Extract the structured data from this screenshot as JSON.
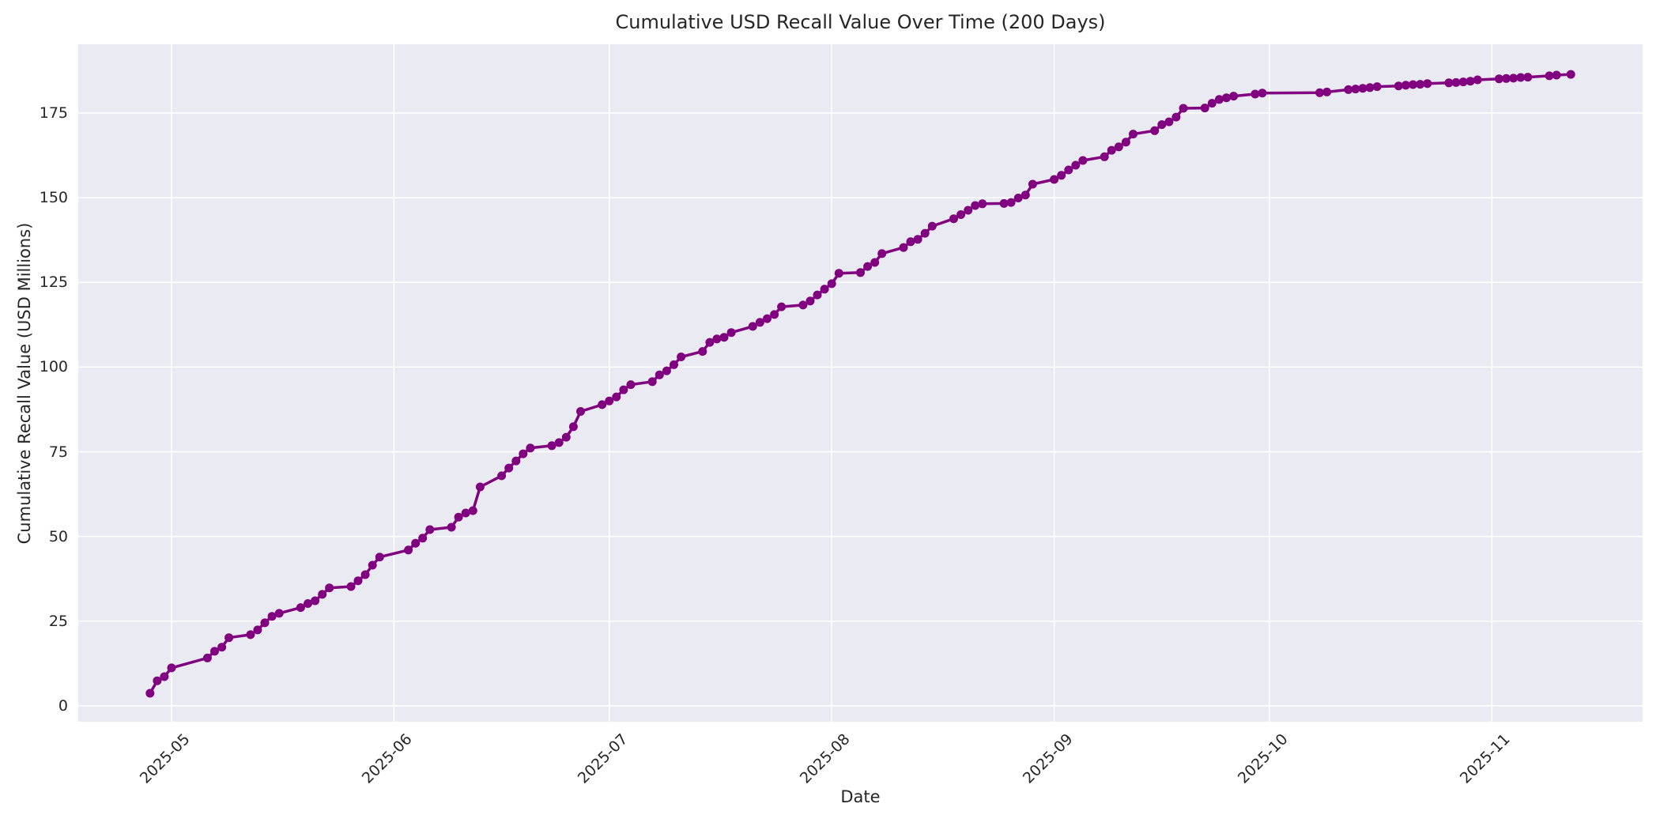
{
  "chart_data": {
    "type": "line",
    "title": "Cumulative USD Recall Value Over Time (200 Days)",
    "xlabel": "Date",
    "ylabel": "Cumulative Recall Value (USD Millions)",
    "series_name": "Cumulative recall value",
    "line_color": "#800080",
    "plot_bg": "#EAEAF2",
    "grid_color": "#FFFFFF",
    "text_color": "#262626",
    "grid": "on",
    "legend": "none",
    "marker": "circle",
    "ylim": [
      -4.7,
      195.3
    ],
    "xlim": [
      "2025-04-18",
      "2025-11-22"
    ],
    "y_ticks": [
      0,
      25,
      50,
      75,
      100,
      125,
      150,
      175
    ],
    "x_ticks": [
      {
        "label": "2025-05",
        "date": "2025-05-01"
      },
      {
        "label": "2025-06",
        "date": "2025-06-01"
      },
      {
        "label": "2025-07",
        "date": "2025-07-01"
      },
      {
        "label": "2025-08",
        "date": "2025-08-01"
      },
      {
        "label": "2025-09",
        "date": "2025-09-01"
      },
      {
        "label": "2025-10",
        "date": "2025-10-01"
      },
      {
        "label": "2025-11",
        "date": "2025-11-01"
      }
    ],
    "points": [
      [
        "2025-04-28",
        3.7
      ],
      [
        "2025-04-29",
        7.4
      ],
      [
        "2025-04-30",
        8.6
      ],
      [
        "2025-05-01",
        11.2
      ],
      [
        "2025-05-06",
        14.1
      ],
      [
        "2025-05-07",
        16.1
      ],
      [
        "2025-05-08",
        17.3
      ],
      [
        "2025-05-09",
        20.1
      ],
      [
        "2025-05-12",
        21.0
      ],
      [
        "2025-05-13",
        22.4
      ],
      [
        "2025-05-14",
        24.5
      ],
      [
        "2025-05-15",
        26.4
      ],
      [
        "2025-05-16",
        27.3
      ],
      [
        "2025-05-19",
        29.0
      ],
      [
        "2025-05-20",
        30.2
      ],
      [
        "2025-05-21",
        31.0
      ],
      [
        "2025-05-22",
        32.9
      ],
      [
        "2025-05-23",
        34.8
      ],
      [
        "2025-05-26",
        35.2
      ],
      [
        "2025-05-27",
        36.9
      ],
      [
        "2025-05-28",
        38.7
      ],
      [
        "2025-05-29",
        41.5
      ],
      [
        "2025-05-30",
        43.9
      ],
      [
        "2025-06-03",
        46.0
      ],
      [
        "2025-06-04",
        48.0
      ],
      [
        "2025-06-05",
        49.5
      ],
      [
        "2025-06-06",
        52.0
      ],
      [
        "2025-06-09",
        52.7
      ],
      [
        "2025-06-10",
        55.7
      ],
      [
        "2025-06-11",
        56.9
      ],
      [
        "2025-06-12",
        57.6
      ],
      [
        "2025-06-13",
        64.6
      ],
      [
        "2025-06-16",
        67.9
      ],
      [
        "2025-06-17",
        70.2
      ],
      [
        "2025-06-18",
        72.3
      ],
      [
        "2025-06-19",
        74.4
      ],
      [
        "2025-06-20",
        76.1
      ],
      [
        "2025-06-23",
        76.8
      ],
      [
        "2025-06-24",
        77.7
      ],
      [
        "2025-06-25",
        79.3
      ],
      [
        "2025-06-26",
        82.4
      ],
      [
        "2025-06-27",
        86.9
      ],
      [
        "2025-06-30",
        88.9
      ],
      [
        "2025-07-01",
        90.0
      ],
      [
        "2025-07-02",
        91.2
      ],
      [
        "2025-07-03",
        93.3
      ],
      [
        "2025-07-04",
        94.8
      ],
      [
        "2025-07-07",
        95.7
      ],
      [
        "2025-07-08",
        97.7
      ],
      [
        "2025-07-09",
        98.9
      ],
      [
        "2025-07-10",
        100.7
      ],
      [
        "2025-07-11",
        103.0
      ],
      [
        "2025-07-14",
        104.6
      ],
      [
        "2025-07-15",
        107.3
      ],
      [
        "2025-07-16",
        108.3
      ],
      [
        "2025-07-17",
        108.8
      ],
      [
        "2025-07-18",
        110.2
      ],
      [
        "2025-07-21",
        112.0
      ],
      [
        "2025-07-22",
        113.2
      ],
      [
        "2025-07-23",
        114.3
      ],
      [
        "2025-07-24",
        115.5
      ],
      [
        "2025-07-25",
        117.8
      ],
      [
        "2025-07-28",
        118.3
      ],
      [
        "2025-07-29",
        119.5
      ],
      [
        "2025-07-30",
        121.3
      ],
      [
        "2025-07-31",
        123.0
      ],
      [
        "2025-08-01",
        124.6
      ],
      [
        "2025-08-02",
        127.7
      ],
      [
        "2025-08-05",
        127.9
      ],
      [
        "2025-08-06",
        129.7
      ],
      [
        "2025-08-07",
        130.9
      ],
      [
        "2025-08-08",
        133.5
      ],
      [
        "2025-08-11",
        135.3
      ],
      [
        "2025-08-12",
        137.0
      ],
      [
        "2025-08-13",
        137.7
      ],
      [
        "2025-08-14",
        139.5
      ],
      [
        "2025-08-15",
        141.6
      ],
      [
        "2025-08-18",
        143.8
      ],
      [
        "2025-08-19",
        145.0
      ],
      [
        "2025-08-20",
        146.3
      ],
      [
        "2025-08-21",
        147.7
      ],
      [
        "2025-08-22",
        148.2
      ],
      [
        "2025-08-25",
        148.3
      ],
      [
        "2025-08-26",
        148.6
      ],
      [
        "2025-08-27",
        149.9
      ],
      [
        "2025-08-28",
        150.8
      ],
      [
        "2025-08-29",
        154.0
      ],
      [
        "2025-09-01",
        155.4
      ],
      [
        "2025-09-02",
        156.6
      ],
      [
        "2025-09-03",
        158.2
      ],
      [
        "2025-09-04",
        159.6
      ],
      [
        "2025-09-05",
        161.0
      ],
      [
        "2025-09-08",
        162.1
      ],
      [
        "2025-09-09",
        164.0
      ],
      [
        "2025-09-10",
        165.0
      ],
      [
        "2025-09-11",
        166.4
      ],
      [
        "2025-09-12",
        168.8
      ],
      [
        "2025-09-15",
        169.8
      ],
      [
        "2025-09-16",
        171.6
      ],
      [
        "2025-09-17",
        172.4
      ],
      [
        "2025-09-18",
        173.8
      ],
      [
        "2025-09-19",
        176.4
      ],
      [
        "2025-09-22",
        176.5
      ],
      [
        "2025-09-23",
        177.9
      ],
      [
        "2025-09-24",
        179.0
      ],
      [
        "2025-09-25",
        179.5
      ],
      [
        "2025-09-26",
        180.0
      ],
      [
        "2025-09-29",
        180.6
      ],
      [
        "2025-09-30",
        180.9
      ],
      [
        "2025-10-08",
        181.0
      ],
      [
        "2025-10-09",
        181.2
      ],
      [
        "2025-10-12",
        181.9
      ],
      [
        "2025-10-13",
        182.1
      ],
      [
        "2025-10-14",
        182.3
      ],
      [
        "2025-10-15",
        182.5
      ],
      [
        "2025-10-16",
        182.8
      ],
      [
        "2025-10-19",
        183.0
      ],
      [
        "2025-10-20",
        183.2
      ],
      [
        "2025-10-21",
        183.4
      ],
      [
        "2025-10-22",
        183.5
      ],
      [
        "2025-10-23",
        183.7
      ],
      [
        "2025-10-26",
        183.9
      ],
      [
        "2025-10-27",
        184.0
      ],
      [
        "2025-10-28",
        184.2
      ],
      [
        "2025-10-29",
        184.4
      ],
      [
        "2025-10-30",
        184.8
      ],
      [
        "2025-11-02",
        185.1
      ],
      [
        "2025-11-03",
        185.2
      ],
      [
        "2025-11-04",
        185.3
      ],
      [
        "2025-11-05",
        185.5
      ],
      [
        "2025-11-06",
        185.6
      ],
      [
        "2025-11-09",
        186.0
      ],
      [
        "2025-11-10",
        186.2
      ],
      [
        "2025-11-12",
        186.4
      ]
    ]
  }
}
